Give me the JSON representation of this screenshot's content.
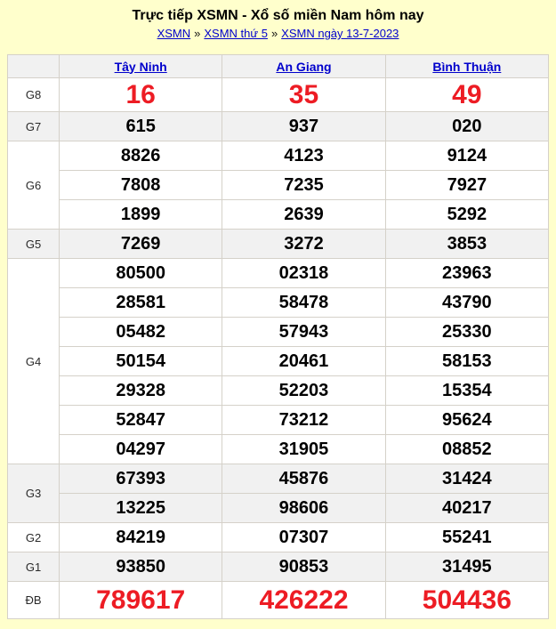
{
  "page": {
    "title": "Trực tiếp XSMN - Xổ số miền Nam hôm nay"
  },
  "breadcrumb": {
    "separator": "»",
    "links": [
      "XSMN",
      "XSMN thứ 5",
      "XSMN ngày 13-7-2023"
    ]
  },
  "results": {
    "provinces": [
      "Tây Ninh",
      "An Giang",
      "Bình Thuận"
    ],
    "prizes": [
      {
        "label": "G8",
        "highlight": true,
        "values": [
          [
            "16"
          ],
          [
            "35"
          ],
          [
            "49"
          ]
        ]
      },
      {
        "label": "G7",
        "values": [
          [
            "615"
          ],
          [
            "937"
          ],
          [
            "020"
          ]
        ]
      },
      {
        "label": "G6",
        "values": [
          [
            "8826",
            "7808",
            "1899"
          ],
          [
            "4123",
            "7235",
            "2639"
          ],
          [
            "9124",
            "7927",
            "5292"
          ]
        ]
      },
      {
        "label": "G5",
        "values": [
          [
            "7269"
          ],
          [
            "3272"
          ],
          [
            "3853"
          ]
        ]
      },
      {
        "label": "G4",
        "values": [
          [
            "80500",
            "28581",
            "05482",
            "50154",
            "29328",
            "52847",
            "04297"
          ],
          [
            "02318",
            "58478",
            "57943",
            "20461",
            "52203",
            "73212",
            "31905"
          ],
          [
            "23963",
            "43790",
            "25330",
            "58153",
            "15354",
            "95624",
            "08852"
          ]
        ]
      },
      {
        "label": "G3",
        "values": [
          [
            "67393",
            "13225"
          ],
          [
            "45876",
            "98606"
          ],
          [
            "31424",
            "40217"
          ]
        ]
      },
      {
        "label": "G2",
        "values": [
          [
            "84219"
          ],
          [
            "07307"
          ],
          [
            "55241"
          ]
        ]
      },
      {
        "label": "G1",
        "values": [
          [
            "93850"
          ],
          [
            "90853"
          ],
          [
            "31495"
          ]
        ]
      },
      {
        "label": "ĐB",
        "highlight": true,
        "values": [
          [
            "789617"
          ],
          [
            "426222"
          ],
          [
            "504436"
          ]
        ]
      }
    ]
  },
  "colors": {
    "page_background": "#FFFFCC",
    "highlight_red": "#ED1C24",
    "link_blue": "#0000CC",
    "shaded_row": "#F1F1F1",
    "table_border": "#D5D1C9"
  }
}
